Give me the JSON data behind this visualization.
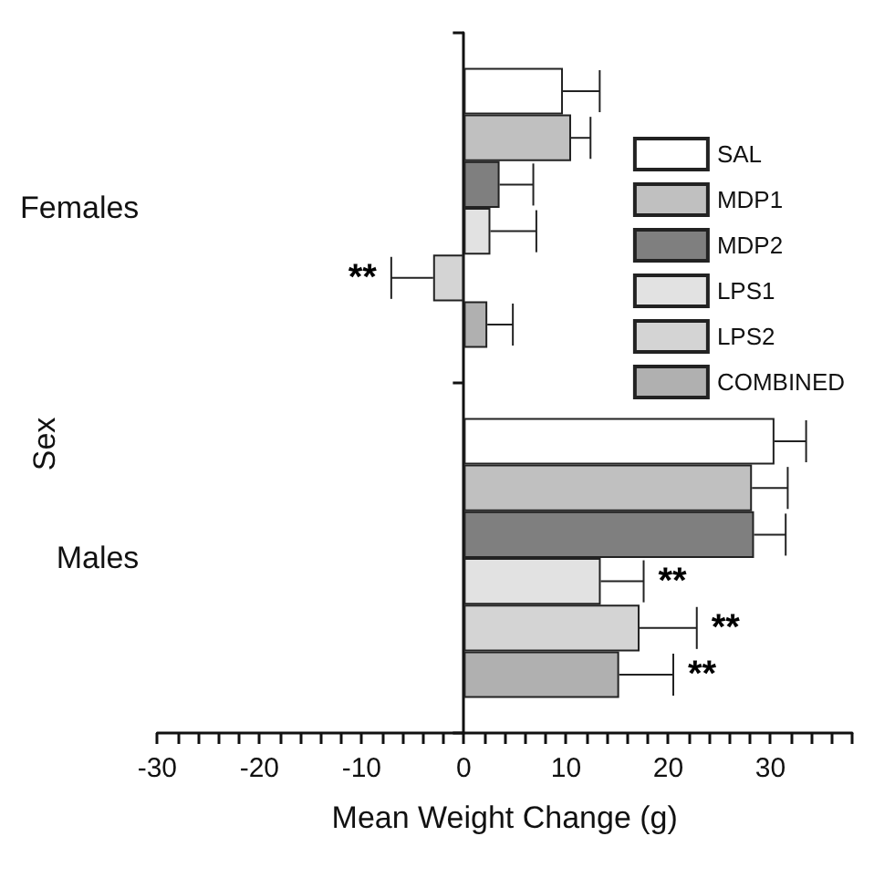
{
  "chart_data": {
    "type": "bar",
    "orientation": "horizontal",
    "xlabel": "Mean Weight Change (g)",
    "ylabel": "Sex",
    "categories": [
      "Females",
      "Males"
    ],
    "series": [
      {
        "name": "SAL",
        "color": "#ffffff",
        "values": [
          9.7,
          30.4
        ],
        "errors": [
          [
            9.7,
            13.3
          ],
          [
            30.4,
            33.5
          ]
        ]
      },
      {
        "name": "MDP1",
        "color": "#c0c0c0",
        "values": [
          10.5,
          28.2
        ],
        "errors": [
          [
            10.5,
            12.4
          ],
          [
            28.2,
            31.7
          ]
        ]
      },
      {
        "name": "MDP2",
        "color": "#7f7f7f",
        "values": [
          3.5,
          28.4
        ],
        "errors": [
          [
            3.5,
            6.8
          ],
          [
            28.4,
            31.5
          ]
        ]
      },
      {
        "name": "LPS1",
        "color": "#e2e2e2",
        "values": [
          2.6,
          13.4
        ],
        "errors": [
          [
            2.6,
            7.1
          ],
          [
            13.4,
            17.6
          ]
        ],
        "value_labels": [
          null,
          "**"
        ]
      },
      {
        "name": "LPS2",
        "color": "#d4d4d4",
        "values": [
          -3.0,
          17.2
        ],
        "errors": [
          [
            -7.1,
            -3.0
          ],
          [
            17.2,
            22.8
          ]
        ],
        "value_labels": [
          "**",
          "**"
        ]
      },
      {
        "name": "COMBINED",
        "color": "#b0b0b0",
        "values": [
          2.3,
          15.2
        ],
        "errors": [
          [
            2.3,
            4.8
          ],
          [
            15.2,
            20.5
          ]
        ],
        "value_labels": [
          null,
          "**"
        ]
      }
    ],
    "xlim": [
      -30,
      38
    ],
    "xticks": [
      -30,
      {
        "value": -28,
        "label": null
      },
      {
        "value": -26,
        "label": null
      },
      {
        "value": -24,
        "label": null
      },
      {
        "value": -22,
        "label": null
      },
      -20,
      {
        "value": -18,
        "label": null
      },
      {
        "value": -16,
        "label": null
      },
      {
        "value": -14,
        "label": null
      },
      {
        "value": -12,
        "label": null
      },
      -10,
      {
        "value": -8,
        "label": null
      },
      {
        "value": -6,
        "label": null
      },
      {
        "value": -4,
        "label": null
      },
      {
        "value": -2,
        "label": null
      },
      0,
      {
        "value": 2,
        "label": null
      },
      {
        "value": 4,
        "label": null
      },
      {
        "value": 6,
        "label": null
      },
      {
        "value": 8,
        "label": null
      },
      10,
      {
        "value": 12,
        "label": null
      },
      {
        "value": 14,
        "label": null
      },
      {
        "value": 16,
        "label": null
      },
      {
        "value": 18,
        "label": null
      },
      20,
      {
        "value": 22,
        "label": null
      },
      {
        "value": 24,
        "label": null
      },
      {
        "value": 26,
        "label": null
      },
      {
        "value": 28,
        "label": null
      },
      30,
      {
        "value": 32,
        "label": null
      },
      {
        "value": 34,
        "label": null
      },
      {
        "value": 36,
        "label": null
      },
      {
        "value": 38,
        "label": null
      }
    ],
    "legend": "top right"
  }
}
